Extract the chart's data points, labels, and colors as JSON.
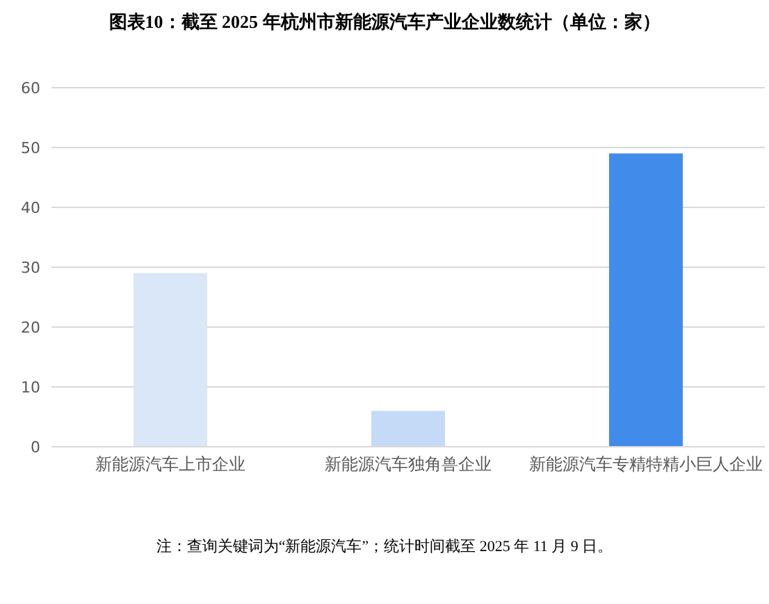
{
  "chart_data": {
    "type": "bar",
    "title": "图表10：截至 2025 年杭州市新能源汽车产业企业数统计（单位：家）",
    "categories": [
      "新能源汽车上市企业",
      "新能源汽车独角兽企业",
      "新能源汽车专精特精小巨人企业"
    ],
    "values": [
      29,
      6,
      49
    ],
    "colors": [
      "#dae7f8",
      "#c5daf7",
      "#418bea"
    ],
    "ylim": [
      0,
      60
    ],
    "yticks": [
      0,
      10,
      20,
      30,
      40,
      50,
      60
    ],
    "grid": "y",
    "annotations": [
      "注：查询关键词为“新能源汽车”；统计时间截至 2025 年 11 月 9 日。"
    ]
  }
}
